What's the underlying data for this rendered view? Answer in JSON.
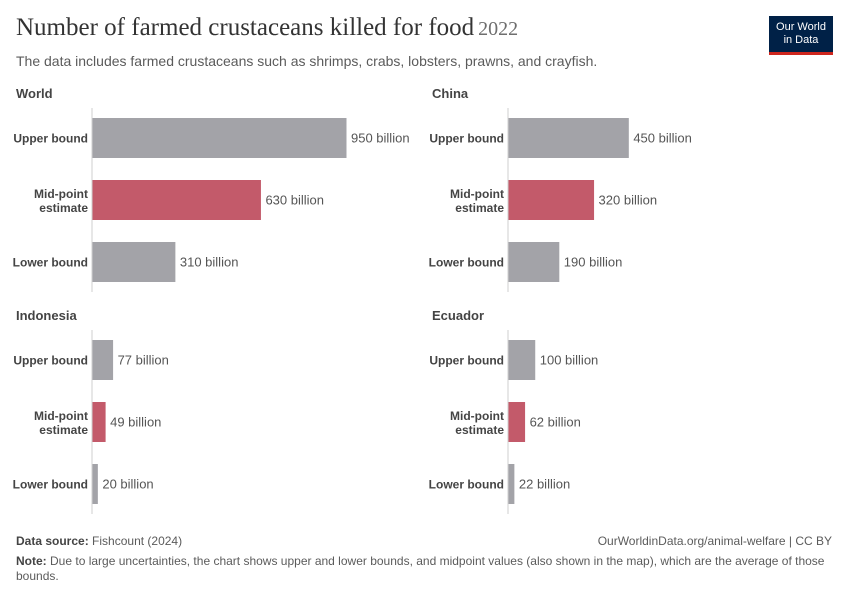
{
  "header": {
    "title": "Number of farmed crustaceans killed for food",
    "year": "2022",
    "subtitle": "The data includes farmed crustaceans such as shrimps, crabs, lobsters, prawns, and crayfish.",
    "logo_line1": "Our World",
    "logo_line2": "in Data"
  },
  "footer": {
    "source_label": "Data source:",
    "source": "Fishcount (2024)",
    "rights": "OurWorldinData.org/animal-welfare | CC BY",
    "note_label": "Note:",
    "note": "Due to large uncertainties, the chart shows upper and lower bounds, and midpoint values (also shown in the map), which are the average of those bounds."
  },
  "colors": {
    "bound": "#a3a3a8",
    "mid": "#c35a6a",
    "axis": "#cfcfcf",
    "label": "#444444"
  },
  "chart_data": [
    {
      "type": "bar",
      "title": "World",
      "categories": [
        "Upper bound",
        "Mid-point estimate",
        "Lower bound"
      ],
      "values": [
        950,
        630,
        310
      ],
      "value_labels": [
        "950 billion",
        "630 billion",
        "310 billion"
      ],
      "xlim": [
        0,
        950
      ]
    },
    {
      "type": "bar",
      "title": "China",
      "categories": [
        "Upper bound",
        "Mid-point estimate",
        "Lower bound"
      ],
      "values": [
        450,
        320,
        190
      ],
      "value_labels": [
        "450 billion",
        "320 billion",
        "190 billion"
      ],
      "xlim": [
        0,
        950
      ]
    },
    {
      "type": "bar",
      "title": "Indonesia",
      "categories": [
        "Upper bound",
        "Mid-point estimate",
        "Lower bound"
      ],
      "values": [
        77,
        49,
        20
      ],
      "value_labels": [
        "77 billion",
        "49 billion",
        "20 billion"
      ],
      "xlim": [
        0,
        950
      ]
    },
    {
      "type": "bar",
      "title": "Ecuador",
      "categories": [
        "Upper bound",
        "Mid-point estimate",
        "Lower bound"
      ],
      "values": [
        100,
        62,
        22
      ],
      "value_labels": [
        "100 billion",
        "62 billion",
        "22 billion"
      ],
      "xlim": [
        0,
        950
      ]
    }
  ]
}
